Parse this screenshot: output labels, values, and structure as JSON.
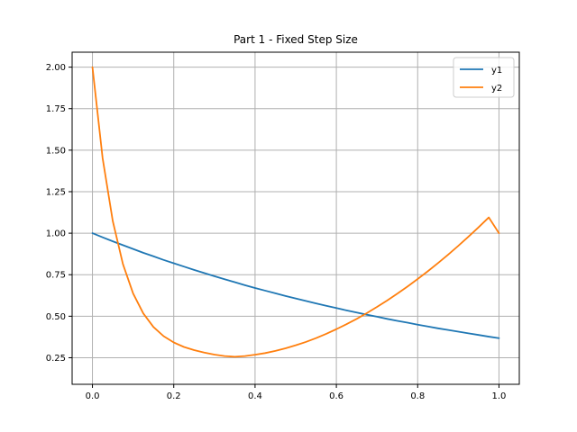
{
  "chart_data": {
    "type": "line",
    "title": "Part 1 - Fixed Step Size",
    "xlabel": "",
    "ylabel": "",
    "xlim": [
      -0.05,
      1.05
    ],
    "ylim": [
      0.09,
      2.09
    ],
    "xticks": [
      0.0,
      0.2,
      0.4,
      0.6,
      0.8,
      1.0
    ],
    "xtick_labels": [
      "0.0",
      "0.2",
      "0.4",
      "0.6",
      "0.8",
      "1.0"
    ],
    "yticks": [
      0.25,
      0.5,
      0.75,
      1.0,
      1.25,
      1.5,
      1.75,
      2.0
    ],
    "ytick_labels": [
      "0.25",
      "0.50",
      "0.75",
      "1.00",
      "1.25",
      "1.50",
      "1.75",
      "2.00"
    ],
    "grid": true,
    "legend_position": "top-right",
    "x": [
      0.0,
      0.025,
      0.05,
      0.075,
      0.1,
      0.125,
      0.15,
      0.175,
      0.2,
      0.225,
      0.25,
      0.275,
      0.3,
      0.325,
      0.35,
      0.375,
      0.4,
      0.425,
      0.45,
      0.475,
      0.5,
      0.525,
      0.55,
      0.575,
      0.6,
      0.625,
      0.65,
      0.675,
      0.7,
      0.725,
      0.75,
      0.775,
      0.8,
      0.825,
      0.85,
      0.875,
      0.9,
      0.925,
      0.95,
      0.975,
      1.0
    ],
    "series": [
      {
        "name": "y1",
        "color": "#1f77b4",
        "values": [
          1.0,
          0.975,
          0.951,
          0.928,
          0.905,
          0.882,
          0.861,
          0.839,
          0.819,
          0.799,
          0.779,
          0.76,
          0.741,
          0.723,
          0.705,
          0.687,
          0.67,
          0.654,
          0.638,
          0.622,
          0.607,
          0.592,
          0.577,
          0.563,
          0.549,
          0.535,
          0.522,
          0.509,
          0.497,
          0.484,
          0.472,
          0.461,
          0.449,
          0.438,
          0.427,
          0.417,
          0.407,
          0.397,
          0.387,
          0.377,
          0.368
        ]
      },
      {
        "name": "y2",
        "color": "#ff7f0e",
        "values": [
          2.0,
          1.452,
          1.073,
          0.814,
          0.637,
          0.517,
          0.435,
          0.38,
          0.342,
          0.315,
          0.296,
          0.281,
          0.269,
          0.26,
          0.256,
          0.26,
          0.268,
          0.278,
          0.291,
          0.307,
          0.325,
          0.345,
          0.368,
          0.394,
          0.422,
          0.452,
          0.484,
          0.519,
          0.556,
          0.595,
          0.636,
          0.679,
          0.724,
          0.771,
          0.82,
          0.871,
          0.924,
          0.979,
          1.036,
          1.095,
          1.0
        ]
      }
    ]
  }
}
